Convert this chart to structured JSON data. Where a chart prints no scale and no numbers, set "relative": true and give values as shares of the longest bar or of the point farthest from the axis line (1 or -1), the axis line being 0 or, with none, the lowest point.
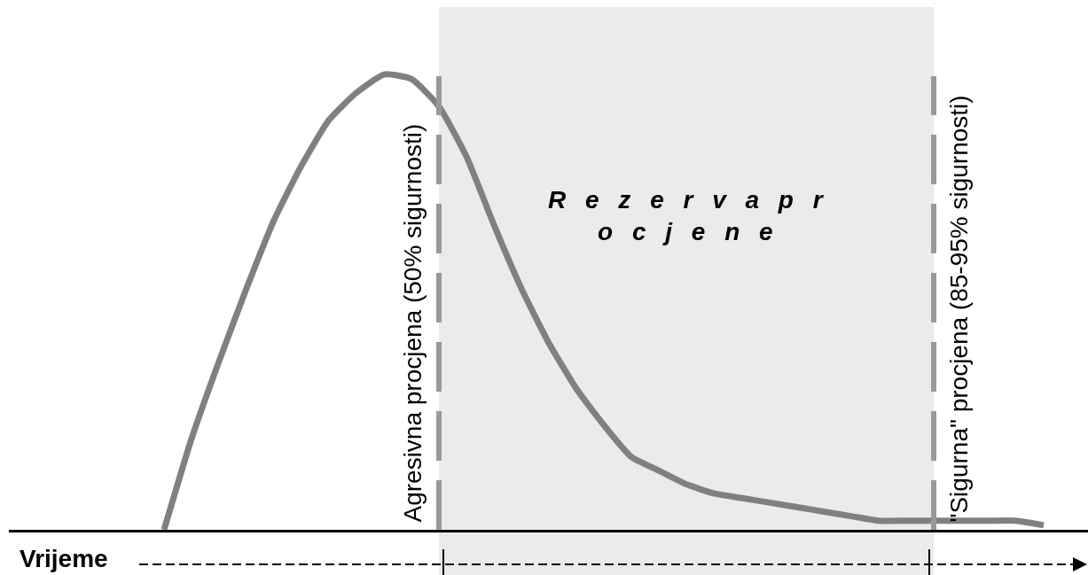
{
  "chart_data": {
    "type": "line",
    "relative": true,
    "xlabel": "Vrijeme",
    "categories": [
      null,
      null,
      null,
      null,
      null,
      null,
      null,
      null,
      null,
      null,
      null,
      null,
      null,
      null,
      null,
      null,
      null,
      null,
      null,
      null,
      null,
      null,
      null,
      null,
      null,
      null,
      null,
      null,
      null,
      null,
      null,
      null,
      null
    ],
    "color": "#808080",
    "values": [
      0,
      0.2,
      0.37,
      0.53,
      0.68,
      0.8,
      0.9,
      0.96,
      1,
      0.99,
      0.93,
      0.82,
      0.67,
      0.53,
      0.41,
      0.31,
      0.23,
      0.16,
      0.13,
      0.1,
      0.08,
      0.07,
      0.06,
      0.05,
      0.04,
      0.03,
      0.02,
      0.02,
      0.02,
      0.02,
      0.02,
      0.02,
      0.01
    ],
    "annotations": [
      "Agresivna procjena (50% sigurnosti)",
      "R e z e r v a p r\no c j e n e",
      "\"Sigurna\" procjena (85-95% sigurnosti)"
    ]
  }
}
